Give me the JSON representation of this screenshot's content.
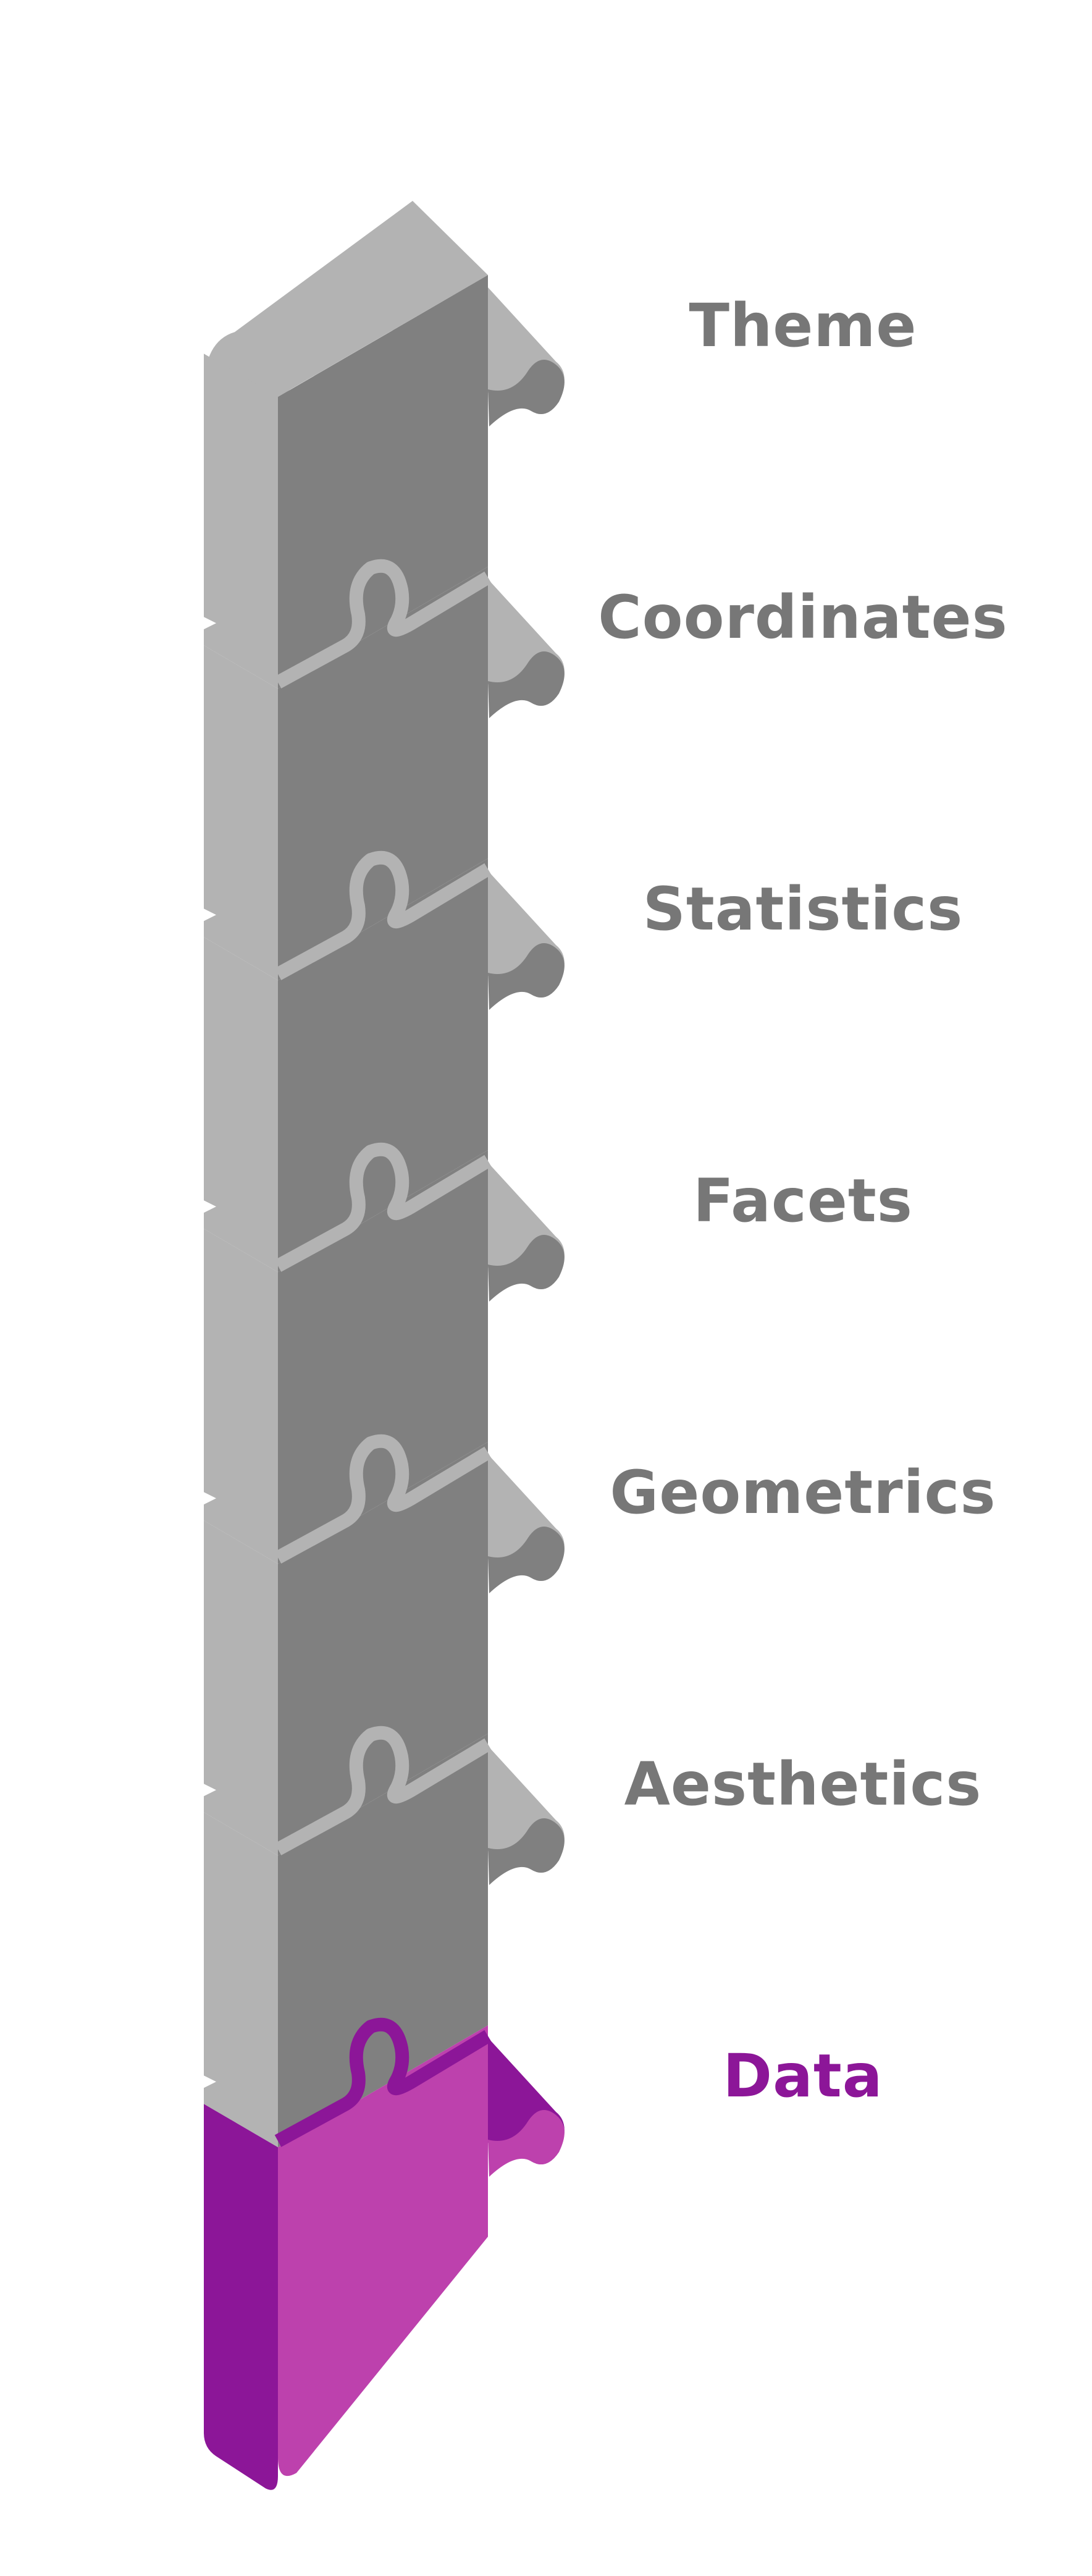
{
  "colors": {
    "gray_face": "#808080",
    "gray_side": "#b3b3b3",
    "gray_label": "#777777",
    "data_face": "#bd41ad",
    "data_side": "#8c1698",
    "data_label": "#8c1698"
  },
  "layers": [
    {
      "name": "Theme",
      "highlighted": false
    },
    {
      "name": "Coordinates",
      "highlighted": false
    },
    {
      "name": "Statistics",
      "highlighted": false
    },
    {
      "name": "Facets",
      "highlighted": false
    },
    {
      "name": "Geometrics",
      "highlighted": false
    },
    {
      "name": "Aesthetics",
      "highlighted": false
    },
    {
      "name": "Data",
      "highlighted": true
    }
  ]
}
